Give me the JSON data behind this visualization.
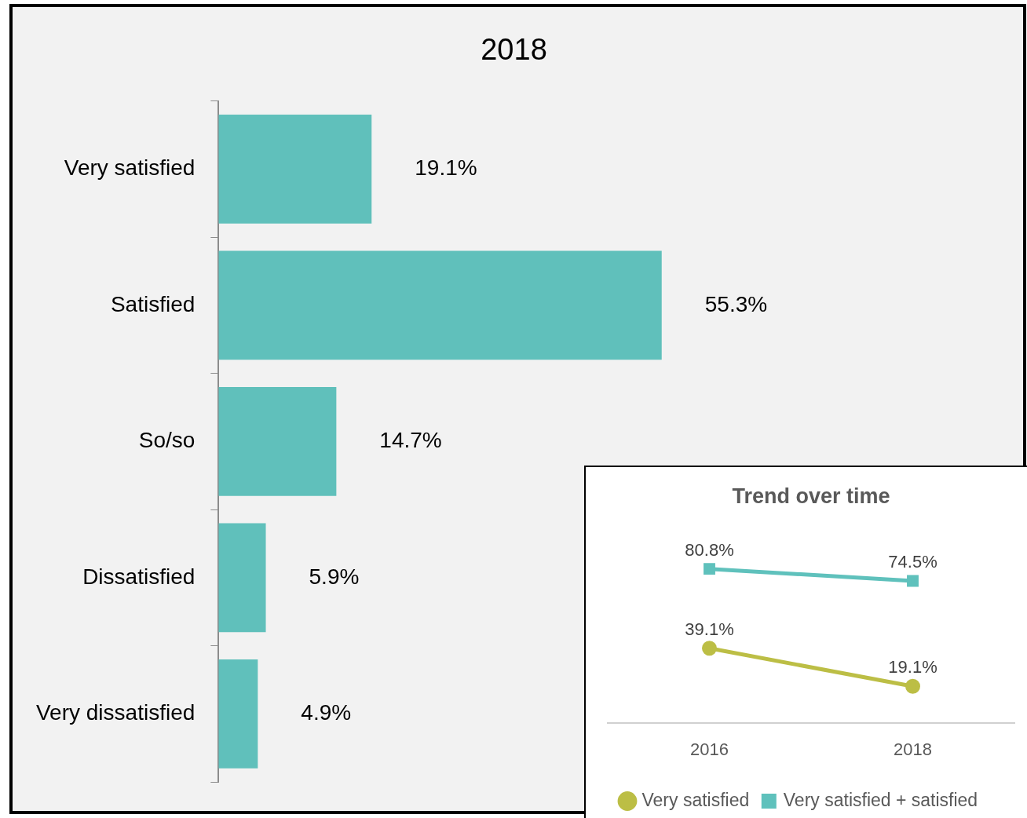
{
  "chart_data": [
    {
      "type": "bar",
      "title": "2018",
      "orientation": "horizontal",
      "categories": [
        "Very satisfied",
        "Satisfied",
        "So/so",
        "Dissatisfied",
        "Very dissatisfied"
      ],
      "values": [
        19.1,
        55.3,
        14.7,
        5.9,
        4.9
      ],
      "color": "#60c0bb",
      "value_labels": [
        "19.1%",
        "55.3%",
        "14.7%",
        "5.9%",
        "4.9%"
      ],
      "grid": false,
      "legend": false,
      "tick_labels": "y"
    },
    {
      "type": "line",
      "title": "Trend over time",
      "categories": [
        "2016",
        "2018"
      ],
      "series": [
        {
          "name": "Very satisfied",
          "color": "#bcbe45",
          "values": [
            39.1,
            19.1
          ],
          "marker": "circle",
          "value_labels": [
            "39.1%",
            "19.1%"
          ]
        },
        {
          "name": "Very satisfied + satisfied",
          "color": "#5fc1bc",
          "values": [
            80.8,
            74.5
          ],
          "marker": "square",
          "value_labels": [
            "80.8%",
            "74.5%"
          ]
        }
      ],
      "grid": false,
      "legend": "bottom",
      "tick_labels": "x"
    }
  ]
}
